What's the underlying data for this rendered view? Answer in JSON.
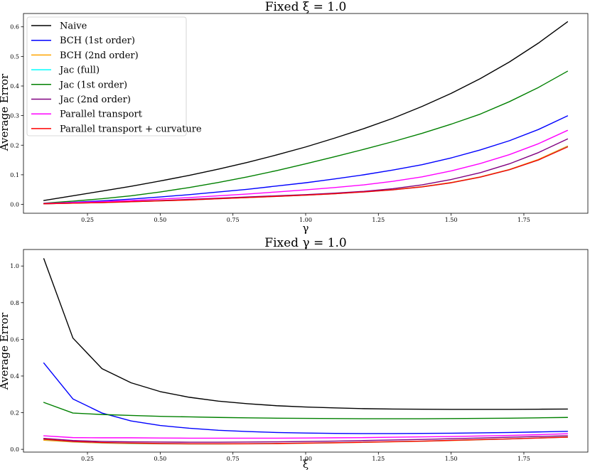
{
  "chart_data": [
    {
      "type": "line",
      "title": "Fixed ξ = 1.0",
      "xlabel": "γ",
      "ylabel": "Average Error",
      "xlim": [
        0.03,
        1.97
      ],
      "ylim": [
        -0.03,
        0.645
      ],
      "xticks": [
        0.25,
        0.5,
        0.75,
        1.0,
        1.25,
        1.5,
        1.75
      ],
      "xtick_labels": [
        "0.25",
        "0.50",
        "0.75",
        "1.00",
        "1.25",
        "1.50",
        "1.75"
      ],
      "yticks": [
        0.0,
        0.1,
        0.2,
        0.3,
        0.4,
        0.5,
        0.6
      ],
      "ytick_labels": [
        "0.0",
        "0.1",
        "0.2",
        "0.3",
        "0.4",
        "0.5",
        "0.6"
      ],
      "legend": "top-left",
      "x": [
        0.1,
        0.2,
        0.3,
        0.4,
        0.5,
        0.6,
        0.7,
        0.8,
        0.9,
        1.0,
        1.1,
        1.2,
        1.3,
        1.4,
        1.5,
        1.6,
        1.7,
        1.8,
        1.9
      ],
      "series": [
        {
          "name": "Naive",
          "color": "#000000",
          "values": [
            0.013,
            0.029,
            0.045,
            0.061,
            0.079,
            0.098,
            0.119,
            0.142,
            0.167,
            0.194,
            0.224,
            0.256,
            0.291,
            0.331,
            0.375,
            0.425,
            0.481,
            0.545,
            0.617
          ]
        },
        {
          "name": "BCH (1st order)",
          "color": "#0000ff",
          "values": [
            0.003,
            0.007,
            0.012,
            0.018,
            0.025,
            0.033,
            0.042,
            0.051,
            0.062,
            0.073,
            0.086,
            0.1,
            0.116,
            0.134,
            0.157,
            0.184,
            0.215,
            0.253,
            0.299
          ]
        },
        {
          "name": "BCH (2nd order)",
          "color": "#ffa500",
          "values": [
            0.002,
            0.004,
            0.006,
            0.009,
            0.012,
            0.015,
            0.019,
            0.023,
            0.027,
            0.031,
            0.036,
            0.043,
            0.05,
            0.06,
            0.074,
            0.093,
            0.118,
            0.152,
            0.197
          ]
        },
        {
          "name": "Jac (full)",
          "color": "#00ffff",
          "values": [
            0.002,
            0.004,
            0.006,
            0.009,
            0.012,
            0.015,
            0.019,
            0.023,
            0.027,
            0.031,
            0.036,
            0.042,
            0.049,
            0.059,
            0.073,
            0.092,
            0.117,
            0.15,
            0.195
          ]
        },
        {
          "name": "Jac (1st order)",
          "color": "#008000",
          "values": [
            0.004,
            0.011,
            0.019,
            0.029,
            0.042,
            0.057,
            0.074,
            0.093,
            0.114,
            0.137,
            0.161,
            0.186,
            0.212,
            0.24,
            0.271,
            0.305,
            0.347,
            0.395,
            0.45
          ]
        },
        {
          "name": "Jac (2nd order)",
          "color": "#800080",
          "values": [
            0.002,
            0.004,
            0.007,
            0.01,
            0.013,
            0.017,
            0.021,
            0.025,
            0.029,
            0.033,
            0.038,
            0.044,
            0.053,
            0.066,
            0.084,
            0.107,
            0.137,
            0.175,
            0.221
          ]
        },
        {
          "name": "Parallel transport",
          "color": "#ff00ff",
          "values": [
            0.003,
            0.006,
            0.009,
            0.013,
            0.018,
            0.023,
            0.029,
            0.035,
            0.042,
            0.049,
            0.057,
            0.066,
            0.078,
            0.093,
            0.113,
            0.138,
            0.168,
            0.205,
            0.25
          ]
        },
        {
          "name": "Parallel transport + curvature",
          "color": "#ff0000",
          "values": [
            0.002,
            0.004,
            0.006,
            0.009,
            0.012,
            0.015,
            0.019,
            0.023,
            0.027,
            0.031,
            0.036,
            0.042,
            0.049,
            0.059,
            0.073,
            0.092,
            0.117,
            0.15,
            0.194
          ]
        }
      ]
    },
    {
      "type": "line",
      "title": "Fixed γ = 1.0",
      "xlabel": "ξ",
      "ylabel": "Average Error",
      "xlim": [
        0.03,
        1.97
      ],
      "ylim": [
        -0.015,
        1.09
      ],
      "xticks": [
        0.25,
        0.5,
        0.75,
        1.0,
        1.25,
        1.5,
        1.75
      ],
      "xtick_labels": [
        "0.25",
        "0.50",
        "0.75",
        "1.00",
        "1.25",
        "1.50",
        "1.75"
      ],
      "yticks": [
        0.0,
        0.2,
        0.4,
        0.6,
        0.8,
        1.0
      ],
      "ytick_labels": [
        "0.0",
        "0.2",
        "0.4",
        "0.6",
        "0.8",
        "1.0"
      ],
      "x": [
        0.1,
        0.2,
        0.3,
        0.4,
        0.5,
        0.6,
        0.7,
        0.8,
        0.9,
        1.0,
        1.1,
        1.2,
        1.3,
        1.4,
        1.5,
        1.6,
        1.7,
        1.8,
        1.9
      ],
      "series": [
        {
          "name": "Naive",
          "color": "#000000",
          "values": [
            1.04,
            0.607,
            0.44,
            0.363,
            0.315,
            0.284,
            0.263,
            0.249,
            0.238,
            0.231,
            0.226,
            0.222,
            0.22,
            0.219,
            0.218,
            0.218,
            0.218,
            0.219,
            0.22
          ]
        },
        {
          "name": "BCH (1st order)",
          "color": "#0000ff",
          "values": [
            0.471,
            0.275,
            0.198,
            0.155,
            0.13,
            0.115,
            0.104,
            0.097,
            0.092,
            0.089,
            0.087,
            0.086,
            0.086,
            0.087,
            0.088,
            0.09,
            0.092,
            0.095,
            0.098
          ]
        },
        {
          "name": "BCH (2nd order)",
          "color": "#ffa500",
          "values": [
            0.05,
            0.04,
            0.034,
            0.031,
            0.03,
            0.029,
            0.029,
            0.03,
            0.031,
            0.033,
            0.035,
            0.038,
            0.041,
            0.044,
            0.048,
            0.052,
            0.057,
            0.062,
            0.067
          ]
        },
        {
          "name": "Jac (full)",
          "color": "#00ffff",
          "values": [
            0.054,
            0.042,
            0.036,
            0.033,
            0.031,
            0.03,
            0.03,
            0.031,
            0.032,
            0.034,
            0.036,
            0.039,
            0.042,
            0.045,
            0.049,
            0.053,
            0.057,
            0.062,
            0.066
          ]
        },
        {
          "name": "Jac (1st order)",
          "color": "#008000",
          "values": [
            0.256,
            0.198,
            0.19,
            0.185,
            0.18,
            0.177,
            0.174,
            0.172,
            0.17,
            0.169,
            0.168,
            0.167,
            0.167,
            0.167,
            0.168,
            0.169,
            0.17,
            0.172,
            0.174
          ]
        },
        {
          "name": "Jac (2nd order)",
          "color": "#800080",
          "values": [
            0.06,
            0.048,
            0.043,
            0.041,
            0.04,
            0.039,
            0.039,
            0.04,
            0.041,
            0.043,
            0.045,
            0.048,
            0.051,
            0.054,
            0.058,
            0.062,
            0.066,
            0.07,
            0.074
          ]
        },
        {
          "name": "Parallel transport",
          "color": "#ff00ff",
          "values": [
            0.074,
            0.064,
            0.063,
            0.063,
            0.062,
            0.061,
            0.061,
            0.061,
            0.061,
            0.062,
            0.063,
            0.064,
            0.066,
            0.068,
            0.07,
            0.073,
            0.076,
            0.08,
            0.085
          ]
        },
        {
          "name": "Parallel transport + curvature",
          "color": "#ff0000",
          "values": [
            0.055,
            0.043,
            0.037,
            0.034,
            0.032,
            0.031,
            0.031,
            0.031,
            0.032,
            0.034,
            0.036,
            0.039,
            0.042,
            0.045,
            0.049,
            0.053,
            0.057,
            0.062,
            0.066
          ]
        }
      ]
    }
  ]
}
